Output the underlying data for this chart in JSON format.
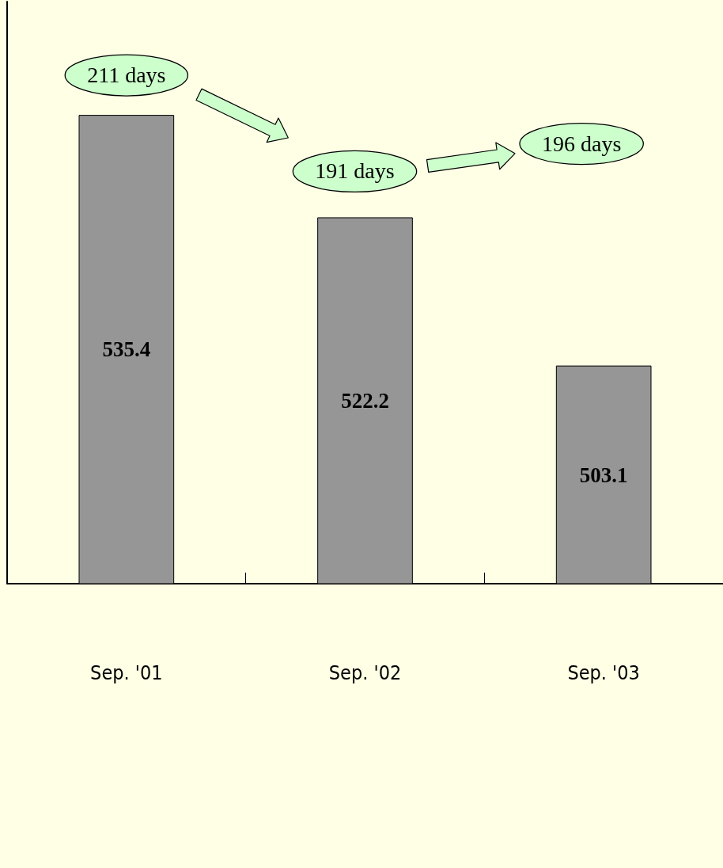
{
  "chart_data": {
    "type": "bar",
    "categories": [
      "Sep. '01",
      "Sep. '02",
      "Sep. '03"
    ],
    "values": [
      535.4,
      522.2,
      503.1
    ],
    "color": "#969696",
    "data_labels": true,
    "ylim": [
      475,
      550
    ],
    "annotations": [
      "211 days",
      "191 days",
      "196 days"
    ]
  }
}
